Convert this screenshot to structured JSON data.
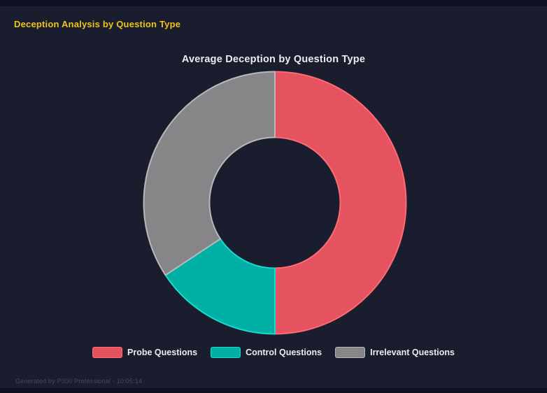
{
  "page": {
    "background": "#191D2D",
    "header": "Deception Analysis by Question Type",
    "header_color": "#EFC319",
    "footer": "Generated by P300 Professional - 10:05:14"
  },
  "chart_data": {
    "type": "pie",
    "subtype": "doughnut",
    "title": "Average Deception by Question Type",
    "labels": [
      "Probe Questions",
      "Control Questions",
      "Irrelevant Questions"
    ],
    "values_percent": [
      50,
      15.7,
      34.3
    ],
    "colors": [
      "#E4535F",
      "#01B0A4",
      "#868588"
    ],
    "border_colors": [
      "#FF6B72",
      "#15DCD0",
      "#B9B9BC"
    ],
    "cutout_percent": 50,
    "start_angle_deg": 0,
    "direction": "clockwise",
    "legend_position": "bottom",
    "title_color": "#E9ECF2",
    "legend_text_color": "#E9ECF2"
  }
}
